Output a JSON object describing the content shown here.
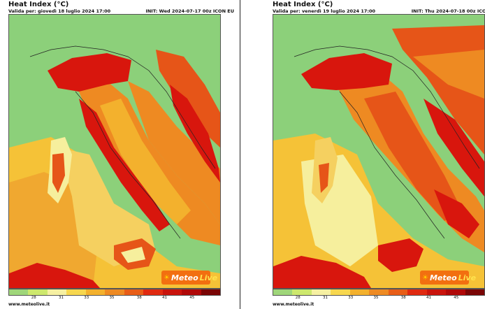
{
  "panels": [
    {
      "title": "Heat Index (°C)",
      "valid": "Valida per: giovedì 18 luglio 2024 17:00",
      "init": "INIT: Wed 2024-07-17 00z ICON EU",
      "site": "www.meteolive.it"
    },
    {
      "title": "Heat Index (°C)",
      "valid": "Valida per: venerdì 19 luglio 2024 17:00",
      "init": "INIT: Thu 2024-07-18 00z ICON EU",
      "site": "www.meteolive.it"
    }
  ],
  "logo": {
    "meteo": "Meteo",
    "live": "Live"
  },
  "colorbar": {
    "ticks": [
      "28",
      "31",
      "33",
      "35",
      "38",
      "41",
      "45"
    ],
    "colors": [
      "#9fd67a",
      "#cde86d",
      "#f6f0a2",
      "#f7d74e",
      "#f3b12d",
      "#ee8a22",
      "#e85d17",
      "#e02910",
      "#c9130c",
      "#b00808",
      "#7a0505"
    ]
  },
  "map_colors": {
    "cool": "#8cd07a",
    "mild": "#f6ef9d",
    "warm": "#f5c237",
    "hot": "#ee8a22",
    "very_hot": "#e65518",
    "extreme": "#d8160d"
  }
}
